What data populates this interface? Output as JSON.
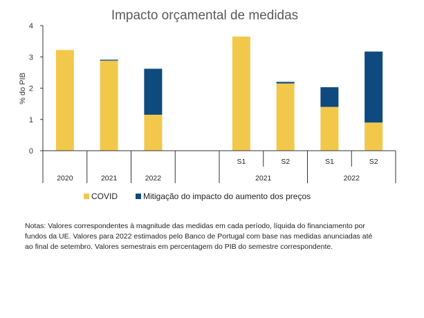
{
  "chart_data": {
    "type": "bar",
    "stacked": true,
    "title": "Impacto orçamental de medidas",
    "xlabel": "",
    "ylabel": "% do PIB",
    "ylim": [
      0,
      4
    ],
    "yticks": [
      "0",
      "1",
      "2",
      "3",
      "4"
    ],
    "categories": [
      "2020",
      "2021",
      "2022",
      "",
      "2021 S1",
      "2021 S2",
      "2022 S1",
      "2022 S2"
    ],
    "category_labels": {
      "annual": [
        "2020",
        "2021",
        "2022"
      ],
      "semesters": [
        "S1",
        "S2",
        "S1",
        "S2"
      ],
      "semester_years": [
        "2021",
        "2022"
      ]
    },
    "series": [
      {
        "name": "COVID",
        "color": "#F2C84B",
        "values": [
          3.22,
          2.88,
          1.15,
          null,
          3.65,
          2.15,
          1.4,
          0.9
        ]
      },
      {
        "name": "Mitigação do impacto do aumento dos preços",
        "color": "#0E4A7E",
        "values": [
          0,
          0.03,
          1.47,
          null,
          0,
          0.05,
          0.63,
          2.27
        ]
      }
    ],
    "grid": false,
    "legend_position": "bottom"
  },
  "notes": {
    "lines": [
      "Notas: Valores correspondentes à magnitude das medidas em cada período, líquida do financiamento por",
      "fundos da UE. Valores para 2022 estimados pelo Banco de Portugal com base nas medidas anunciadas até",
      "ao final de setembro. Valores semestrais em percentagem do PIB do semestre correspondente."
    ]
  }
}
